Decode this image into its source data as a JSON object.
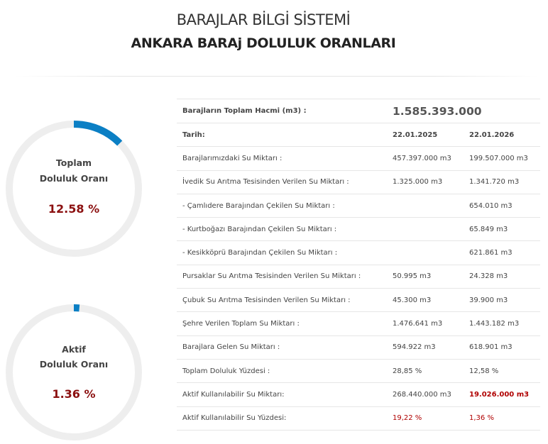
{
  "header": {
    "title": "BARAJLAR BİLGİ SİSTEMİ",
    "subtitle": "ANKARA BARAj DOLULUK ORANLARI"
  },
  "colors": {
    "gauge_fill": "#0b7fc4",
    "gauge_track": "#eeeeee",
    "value_red": "#8b1010",
    "alert_red": "#b00000"
  },
  "gauges": [
    {
      "label_line1": "Toplam",
      "label_line2": "Doluluk Oranı",
      "value": "12.58 %",
      "fraction": 0.1258
    },
    {
      "label_line1": "Aktif",
      "label_line2": "Doluluk Oranı",
      "value": "1.36 %",
      "fraction": 0.0136
    }
  ],
  "table": {
    "total_volume_label": "Barajların Toplam Hacmi (m3) :",
    "total_volume_value": "1.585.393.000",
    "date_label": "Tarih:",
    "date_1": "22.01.2025",
    "date_2": "22.01.2026",
    "rows": [
      {
        "label": "Barajlarımızdaki Su Miktarı :",
        "v1": "457.397.000 m3",
        "v2": "199.507.000 m3"
      },
      {
        "label": "İvedik Su Arıtma Tesisinden Verilen Su Miktarı :",
        "v1": "1.325.000 m3",
        "v2": "1.341.720 m3"
      },
      {
        "label": "- Çamlıdere Barajından Çekilen Su Miktarı :",
        "v1": "",
        "v2": "654.010 m3"
      },
      {
        "label": "- Kurtboğazı Barajından Çekilen Su Miktarı :",
        "v1": "",
        "v2": "65.849 m3"
      },
      {
        "label": "- Kesikköprü Barajından Çekilen Su Miktarı :",
        "v1": "",
        "v2": "621.861 m3"
      },
      {
        "label": "Pursaklar Su Arıtma Tesisinden Verilen Su Miktarı :",
        "v1": "50.995 m3",
        "v2": "24.328 m3"
      },
      {
        "label": "Çubuk Su Arıtma Tesisinden Verilen Su Miktarı :",
        "v1": "45.300 m3",
        "v2": "39.900 m3"
      },
      {
        "label": "Şehre Verilen Toplam Su Miktarı :",
        "v1": "1.476.641 m3",
        "v2": "1.443.182 m3"
      },
      {
        "label": "Barajlara Gelen Su Miktarı :",
        "v1": "594.922 m3",
        "v2": "618.901 m3"
      },
      {
        "label": "Toplam Doluluk Yüzdesi :",
        "v1": "28,85 %",
        "v2": "12,58 %"
      },
      {
        "label": "Aktif Kullanılabilir Su Miktarı:",
        "v1": "268.440.000 m3",
        "v2": "19.026.000 m3"
      },
      {
        "label": "Aktif Kullanılabilir Su Yüzdesi:",
        "v1": "19,22 %",
        "v2": "1,36 %"
      }
    ]
  }
}
